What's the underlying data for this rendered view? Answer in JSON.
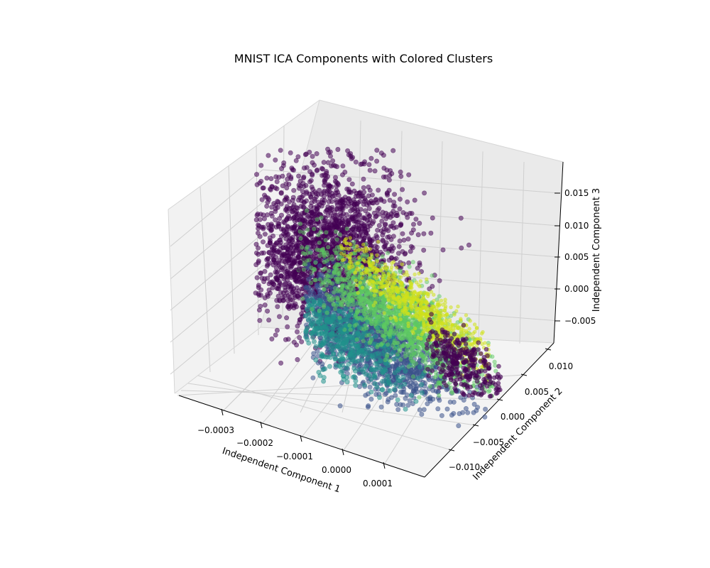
{
  "chart_data": {
    "type": "scatter",
    "title": "MNIST ICA Components with Colored Clusters",
    "xlabel": "Independent Component 1",
    "ylabel": "Independent Component 2",
    "zlabel": "Independent Component 3",
    "x_ticks": [
      "−0.0003",
      "−0.0002",
      "−0.0001",
      "0.0000",
      "0.0001"
    ],
    "y_ticks": [
      "−0.010",
      "−0.005",
      "0.000",
      "0.005",
      "0.010"
    ],
    "z_ticks": [
      "−0.005",
      "0.000",
      "0.005",
      "0.010",
      "0.015"
    ],
    "xlim": [
      -0.00036,
      0.00017
    ],
    "ylim": [
      -0.0135,
      0.0135
    ],
    "zlim": [
      -0.0085,
      0.0185
    ],
    "projection": "3d",
    "grid": true,
    "colormap": "viridis",
    "colors": {
      "cluster_purple": "#440154",
      "cluster_blue": "#3b528b",
      "cluster_teal": "#21918c",
      "cluster_green": "#5ec962",
      "cluster_yellow": "#d0e11c",
      "pane": "#f2f2f2",
      "grid": "#c8c8c8"
    },
    "series": [
      {
        "values": [
          [
            -0.00031,
            -0.0005,
            0.0135
          ],
          [
            -0.00024,
            -0.0022,
            0.0118
          ],
          [
            -0.00018,
            0.0012,
            0.0142
          ],
          [
            -0.00027,
            0.0018,
            0.0094
          ],
          [
            -0.00012,
            -0.0041,
            0.0108
          ]
        ]
      },
      {
        "values": [
          [
            -8e-05,
            -0.0061,
            -0.0012
          ],
          [
            -2e-05,
            -0.0083,
            -0.0021
          ],
          [
            2e-05,
            -0.0072,
            -0.0035
          ],
          [
            -5e-05,
            -0.0095,
            -0.0008
          ]
        ]
      },
      {
        "values": [
          [
            -0.00012,
            -0.0045,
            0.0008
          ],
          [
            -4e-05,
            -0.0035,
            -0.0015
          ],
          [
            3e-05,
            -0.0051,
            0.0011
          ]
        ]
      },
      {
        "values": [
          [
            -2e-05,
            0.0032,
            0.0042
          ],
          [
            4e-05,
            0.0051,
            0.0028
          ],
          [
            7e-05,
            0.0041,
            0.0015
          ]
        ]
      },
      {
        "values": [
          [
            -5e-05,
            0.0071,
            0.0062
          ],
          [
            3e-05,
            0.0083,
            0.0049
          ],
          [
            9e-05,
            0.0065,
            0.0031
          ]
        ]
      }
    ]
  }
}
